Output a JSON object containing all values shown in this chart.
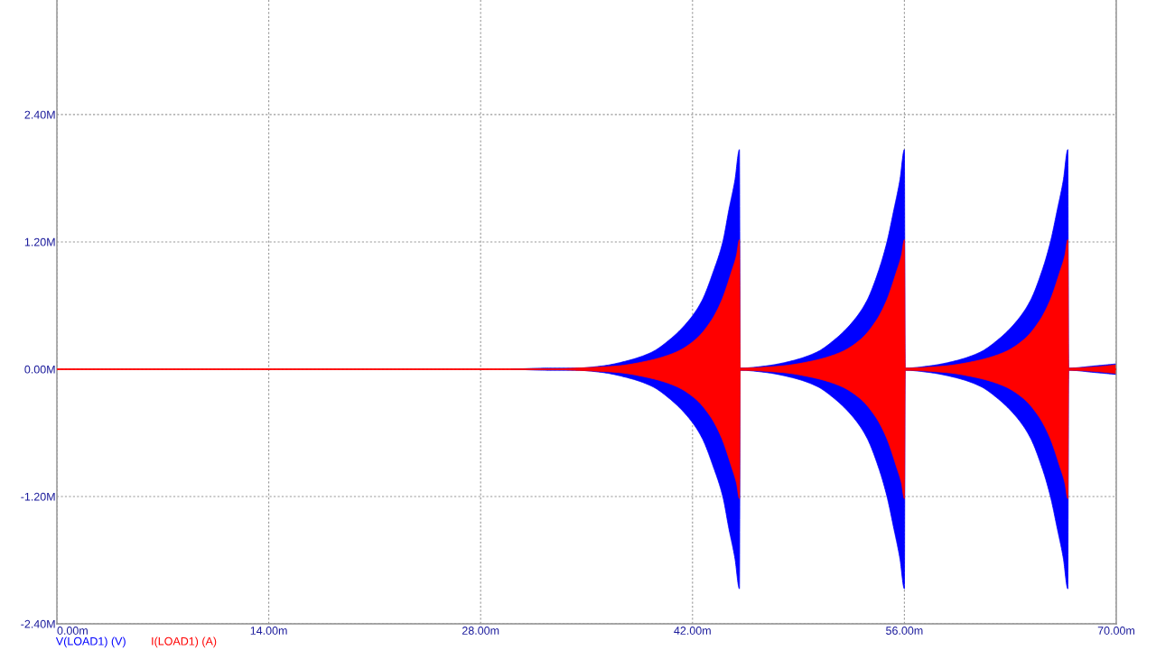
{
  "chart_data": {
    "type": "line",
    "xlim": [
      0,
      70
    ],
    "xticks": [
      {
        "value": 0,
        "label": "0.00m"
      },
      {
        "value": 14,
        "label": "14.00m"
      },
      {
        "value": 28,
        "label": "28.00m"
      },
      {
        "value": 42,
        "label": "42.00m"
      },
      {
        "value": 56,
        "label": "56.00m"
      },
      {
        "value": 70,
        "label": "70.00m"
      }
    ],
    "ylim": [
      -2.4,
      3.48
    ],
    "yticks": [
      {
        "value": -2.4,
        "label": "-2.40M"
      },
      {
        "value": -1.2,
        "label": "-1.20M"
      },
      {
        "value": 0,
        "label": "0.00M"
      },
      {
        "value": 1.2,
        "label": "1.20M"
      },
      {
        "value": 2.4,
        "label": "2.40M"
      }
    ],
    "grid": true,
    "legend": "bottom left",
    "series": [
      {
        "name": "V(LOAD1) (V)",
        "color": "#0000ff",
        "x": [
          30.0,
          32.5,
          34.3,
          36.0,
          37.7,
          39.3,
          40.5,
          41.7,
          42.6,
          43.4,
          44.0,
          44.4,
          44.8,
          45.1,
          45.15,
          46.8,
          48.6,
          50.2,
          51.4,
          52.6,
          53.5,
          54.3,
          54.85,
          55.3,
          55.7,
          56.0,
          56.05,
          57.6,
          59.4,
          61.0,
          62.2,
          63.4,
          64.3,
          65.1,
          65.65,
          66.1,
          66.5,
          66.8,
          66.85,
          68.5,
          70.0
        ],
        "values": [
          null,
          null,
          null,
          null,
          null,
          null,
          null,
          null,
          null,
          null,
          null,
          null,
          null,
          null,
          null,
          null,
          null,
          null,
          null,
          null,
          null,
          null,
          null,
          null,
          null,
          null,
          null,
          null,
          null,
          null,
          null,
          null,
          null,
          null,
          null,
          null,
          null,
          null,
          null,
          null,
          null
        ],
        "lower": [
          0.0,
          -0.01,
          -0.01,
          -0.03,
          -0.08,
          -0.16,
          -0.28,
          -0.45,
          -0.64,
          -0.93,
          -1.2,
          -1.5,
          -1.78,
          -2.07,
          -0.01,
          -0.03,
          -0.08,
          -0.16,
          -0.28,
          -0.45,
          -0.64,
          -0.93,
          -1.2,
          -1.5,
          -1.78,
          -2.07,
          -0.01,
          -0.03,
          -0.08,
          -0.16,
          -0.28,
          -0.45,
          -0.64,
          -0.93,
          -1.2,
          -1.5,
          -1.78,
          -2.07,
          -0.01,
          -0.03,
          -0.05
        ],
        "upper": [
          0.0,
          0.01,
          0.01,
          0.03,
          0.08,
          0.16,
          0.28,
          0.45,
          0.64,
          0.93,
          1.2,
          1.5,
          1.78,
          2.07,
          0.01,
          0.03,
          0.08,
          0.16,
          0.28,
          0.45,
          0.64,
          0.93,
          1.2,
          1.5,
          1.78,
          2.07,
          0.01,
          0.03,
          0.08,
          0.16,
          0.28,
          0.45,
          0.64,
          0.93,
          1.2,
          1.5,
          1.78,
          2.07,
          0.01,
          0.03,
          0.05
        ]
      },
      {
        "name": "I(LOAD1) (A)",
        "color": "#ff0000",
        "x": [
          0.0,
          30.0,
          32.5,
          34.3,
          37.0,
          39.1,
          40.9,
          42.2,
          43.2,
          43.9,
          44.6,
          44.9,
          45.1,
          45.15,
          47.85,
          50.0,
          51.8,
          53.1,
          54.1,
          54.8,
          55.5,
          55.8,
          56.0,
          56.05,
          58.65,
          60.8,
          62.6,
          63.9,
          64.9,
          65.6,
          66.3,
          66.6,
          66.8,
          66.85,
          68.5,
          70.0
        ],
        "values": [
          0,
          0,
          0,
          0,
          0,
          0,
          0,
          0,
          0,
          0,
          0,
          0,
          0,
          0,
          0,
          0,
          0,
          0,
          0,
          0,
          0,
          0,
          0,
          0,
          0,
          0,
          0,
          0,
          0,
          0,
          0,
          0,
          0,
          0,
          0,
          0
        ],
        "lower": [
          0.0,
          0.0,
          0.0,
          -0.01,
          -0.03,
          -0.08,
          -0.16,
          -0.28,
          -0.45,
          -0.64,
          -0.93,
          -1.07,
          -1.22,
          -0.01,
          -0.03,
          -0.08,
          -0.16,
          -0.28,
          -0.45,
          -0.64,
          -0.93,
          -1.07,
          -1.22,
          -0.01,
          -0.03,
          -0.08,
          -0.16,
          -0.28,
          -0.45,
          -0.64,
          -0.93,
          -1.07,
          -1.22,
          -0.01,
          -0.02,
          -0.04
        ],
        "upper": [
          0.0,
          0.0,
          0.0,
          0.01,
          0.03,
          0.08,
          0.16,
          0.28,
          0.45,
          0.64,
          0.93,
          1.07,
          1.22,
          0.01,
          0.03,
          0.08,
          0.16,
          0.28,
          0.45,
          0.64,
          0.93,
          1.07,
          1.22,
          0.01,
          0.03,
          0.08,
          0.16,
          0.28,
          0.45,
          0.64,
          0.93,
          1.07,
          1.22,
          0.01,
          0.02,
          0.04
        ]
      }
    ]
  }
}
